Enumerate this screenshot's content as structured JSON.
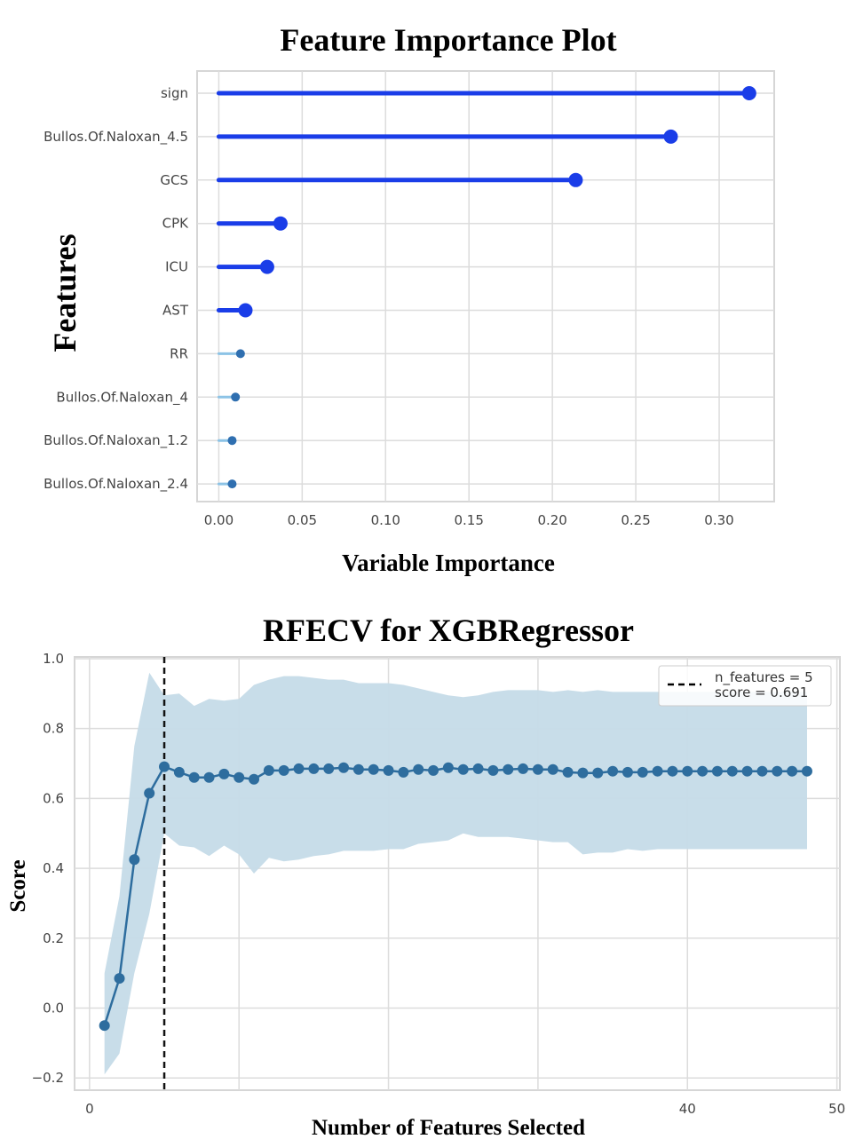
{
  "chart_data": [
    {
      "type": "lollipop",
      "title": "Feature Importance Plot",
      "xlabel": "Variable Importance",
      "ylabel": "Features",
      "xlim": [
        -0.013,
        0.333
      ],
      "xticks": [
        "0.00",
        "0.05",
        "0.10",
        "0.15",
        "0.20",
        "0.25",
        "0.30"
      ],
      "xtick_values": [
        0,
        0.05,
        0.1,
        0.15,
        0.2,
        0.25,
        0.3
      ],
      "grid": true,
      "features": [
        {
          "name": "sign",
          "value": 0.318,
          "color": "#1a3de8"
        },
        {
          "name": "Bullos.Of.Naloxan_4.5",
          "value": 0.271,
          "color": "#1a3de8"
        },
        {
          "name": "GCS",
          "value": 0.214,
          "color": "#1a3de8"
        },
        {
          "name": "CPK",
          "value": 0.037,
          "color": "#1a3de8"
        },
        {
          "name": "ICU",
          "value": 0.029,
          "color": "#1a3de8"
        },
        {
          "name": "AST",
          "value": 0.016,
          "color": "#1a3de8"
        },
        {
          "name": "RR",
          "value": 0.013,
          "color": "#2f6fb0"
        },
        {
          "name": "Bullos.Of.Naloxan_4",
          "value": 0.01,
          "color": "#2f6fb0"
        },
        {
          "name": "Bullos.Of.Naloxan_1.2",
          "value": 0.008,
          "color": "#2f6fb0"
        },
        {
          "name": "Bullos.Of.Naloxan_2.4",
          "value": 0.008,
          "color": "#2f6fb0"
        }
      ]
    },
    {
      "type": "line",
      "title": "RFECV for XGBRegressor",
      "xlabel": "Number of Features Selected",
      "ylabel": "Score",
      "xlim": [
        -1,
        50.2
      ],
      "ylim": [
        -0.235,
        1.005
      ],
      "xticks": [
        "0",
        "40",
        "50"
      ],
      "xtick_values": [
        0,
        40,
        50
      ],
      "yticks": [
        "−0.2",
        "0.0",
        "0.2",
        "0.4",
        "0.6",
        "0.8",
        "1.0"
      ],
      "ytick_values": [
        -0.2,
        0.0,
        0.2,
        0.4,
        0.6,
        0.8,
        1.0
      ],
      "grid": true,
      "legend_position": "top-right",
      "legend": [
        "n_features = 5",
        "score = 0.691"
      ],
      "selected_x": 5,
      "line_color": "#2e6d9e",
      "band_color": "#c5dbe8",
      "x": [
        1,
        2,
        3,
        4,
        5,
        6,
        7,
        8,
        9,
        10,
        11,
        12,
        13,
        14,
        15,
        16,
        17,
        18,
        19,
        20,
        21,
        22,
        23,
        24,
        25,
        26,
        27,
        28,
        29,
        30,
        31,
        32,
        33,
        34,
        35,
        36,
        37,
        38,
        39,
        40,
        41,
        42,
        43,
        44,
        45,
        46,
        47,
        48
      ],
      "mean": [
        -0.05,
        0.085,
        0.425,
        0.615,
        0.691,
        0.675,
        0.66,
        0.66,
        0.67,
        0.66,
        0.655,
        0.68,
        0.68,
        0.685,
        0.685,
        0.685,
        0.688,
        0.683,
        0.683,
        0.68,
        0.675,
        0.683,
        0.68,
        0.688,
        0.683,
        0.685,
        0.68,
        0.683,
        0.685,
        0.683,
        0.683,
        0.675,
        0.673,
        0.673,
        0.678,
        0.675,
        0.675,
        0.678,
        0.678,
        0.678,
        0.678,
        0.678,
        0.678,
        0.678,
        0.678,
        0.678,
        0.678,
        0.678
      ],
      "upper": [
        0.1,
        0.32,
        0.75,
        0.96,
        0.895,
        0.9,
        0.865,
        0.885,
        0.88,
        0.885,
        0.925,
        0.94,
        0.95,
        0.95,
        0.945,
        0.94,
        0.94,
        0.93,
        0.93,
        0.93,
        0.925,
        0.915,
        0.905,
        0.895,
        0.89,
        0.895,
        0.905,
        0.91,
        0.91,
        0.91,
        0.905,
        0.91,
        0.905,
        0.91,
        0.905,
        0.905,
        0.905,
        0.905,
        0.905,
        0.905,
        0.905,
        0.905,
        0.905,
        0.905,
        0.905,
        0.905,
        0.905,
        0.905
      ],
      "lower": [
        -0.19,
        -0.13,
        0.1,
        0.27,
        0.5,
        0.465,
        0.46,
        0.435,
        0.465,
        0.44,
        0.385,
        0.43,
        0.42,
        0.425,
        0.435,
        0.44,
        0.45,
        0.45,
        0.45,
        0.455,
        0.455,
        0.47,
        0.475,
        0.48,
        0.5,
        0.49,
        0.49,
        0.49,
        0.485,
        0.48,
        0.475,
        0.475,
        0.44,
        0.445,
        0.445,
        0.455,
        0.45,
        0.455,
        0.455,
        0.455,
        0.455,
        0.455,
        0.455,
        0.455,
        0.455,
        0.455,
        0.455,
        0.455
      ]
    }
  ]
}
